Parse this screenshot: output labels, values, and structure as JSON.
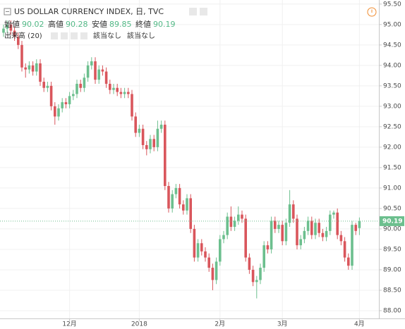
{
  "chart_data": {
    "type": "candlestick",
    "header": {
      "title": "US DOLLAR CURRENCY INDEX, 日, TVC",
      "open_label": "始値",
      "open": "90.02",
      "high_label": "高値",
      "high": "90.28",
      "low_label": "安値",
      "low": "89.85",
      "close_label": "終値",
      "close": "90.19"
    },
    "volume": {
      "label": "出来高 (20)",
      "value1": "該当なし",
      "value2": "該当なし"
    },
    "categories": [
      null,
      null,
      null,
      null,
      null,
      null,
      null,
      null,
      null,
      null,
      null,
      null,
      null,
      null,
      null,
      null,
      null,
      null,
      "12月",
      null,
      null,
      null,
      null,
      null,
      null,
      null,
      null,
      null,
      null,
      null,
      null,
      null,
      null,
      null,
      null,
      null,
      null,
      "2018",
      null,
      null,
      null,
      null,
      null,
      null,
      null,
      null,
      null,
      null,
      null,
      null,
      null,
      null,
      null,
      null,
      null,
      null,
      null,
      null,
      null,
      "2月",
      null,
      null,
      null,
      null,
      null,
      null,
      null,
      null,
      null,
      null,
      null,
      null,
      null,
      null,
      null,
      null,
      "3月",
      null,
      null,
      null,
      null,
      null,
      null,
      null,
      null,
      null,
      null,
      null,
      null,
      null,
      null,
      null,
      null,
      null,
      null,
      null,
      null,
      "4月"
    ],
    "open": [
      94.8,
      94.9,
      95.0,
      94.85,
      94.7,
      94.5,
      93.95,
      93.9,
      94.0,
      93.85,
      94.05,
      93.6,
      93.45,
      93.5,
      93.0,
      92.75,
      92.95,
      93.1,
      93.05,
      93.25,
      93.3,
      93.55,
      93.45,
      93.7,
      94.0,
      94.1,
      93.65,
      93.9,
      93.85,
      93.55,
      93.4,
      93.45,
      93.35,
      93.3,
      93.35,
      93.3,
      92.75,
      92.35,
      92.45,
      92.05,
      91.95,
      92.2,
      92.0,
      92.45,
      92.55,
      91.05,
      90.5,
      90.85,
      91.0,
      90.6,
      90.45,
      90.75,
      90.0,
      89.3,
      89.65,
      89.45,
      89.3,
      89.05,
      88.75,
      89.2,
      89.75,
      89.85,
      90.3,
      90.05,
      90.2,
      90.35,
      90.25,
      89.3,
      89.0,
      88.7,
      88.75,
      89.05,
      89.6,
      89.5,
      90.2,
      90.0,
      90.1,
      89.7,
      90.15,
      90.6,
      90.25,
      89.6,
      89.75,
      89.95,
      90.2,
      89.85,
      90.15,
      89.9,
      89.8,
      89.95,
      90.35,
      90.4,
      89.85,
      89.7,
      89.3,
      89.1,
      90.1,
      90.02
    ],
    "high": [
      95.0,
      95.1,
      95.1,
      94.95,
      94.8,
      94.6,
      94.05,
      94.1,
      94.1,
      94.15,
      94.15,
      93.7,
      93.6,
      93.6,
      93.1,
      93.05,
      93.2,
      93.2,
      93.35,
      93.4,
      93.65,
      93.65,
      93.8,
      94.1,
      94.2,
      94.2,
      94.0,
      94.0,
      93.95,
      93.65,
      93.55,
      93.55,
      93.45,
      93.45,
      93.45,
      93.4,
      92.85,
      92.55,
      92.55,
      92.15,
      92.3,
      92.3,
      92.65,
      92.65,
      92.65,
      91.15,
      90.95,
      91.1,
      91.1,
      90.7,
      90.85,
      90.85,
      90.1,
      89.75,
      89.75,
      89.55,
      89.4,
      89.15,
      89.3,
      89.85,
      89.95,
      90.4,
      90.55,
      90.3,
      90.55,
      90.45,
      90.35,
      89.4,
      89.1,
      88.85,
      89.15,
      89.7,
      89.7,
      90.3,
      90.3,
      90.2,
      90.2,
      90.25,
      90.95,
      90.7,
      90.35,
      89.85,
      90.05,
      90.3,
      90.3,
      90.25,
      90.25,
      90.0,
      90.05,
      90.45,
      90.45,
      90.5,
      89.95,
      89.8,
      89.4,
      90.2,
      90.15,
      90.28
    ],
    "low": [
      94.7,
      94.8,
      94.75,
      94.6,
      94.4,
      93.85,
      93.7,
      93.8,
      93.75,
      93.75,
      93.5,
      93.35,
      93.35,
      92.9,
      92.55,
      92.65,
      92.85,
      92.95,
      92.95,
      93.15,
      93.2,
      93.35,
      93.35,
      93.6,
      93.9,
      93.55,
      93.55,
      93.75,
      93.45,
      93.3,
      93.3,
      93.25,
      93.2,
      93.2,
      93.2,
      92.65,
      92.25,
      92.25,
      91.95,
      91.8,
      91.85,
      91.9,
      91.9,
      92.35,
      90.95,
      90.4,
      90.4,
      90.75,
      90.5,
      90.35,
      90.35,
      89.9,
      89.2,
      89.2,
      89.35,
      89.2,
      88.95,
      88.5,
      88.65,
      89.1,
      89.65,
      89.75,
      89.95,
      89.95,
      90.1,
      90.15,
      89.2,
      88.9,
      88.6,
      88.3,
      88.65,
      88.95,
      89.4,
      89.4,
      89.9,
      89.9,
      89.6,
      89.6,
      90.05,
      90.15,
      89.5,
      89.5,
      89.65,
      89.85,
      89.75,
      89.75,
      89.8,
      89.7,
      89.7,
      89.85,
      90.25,
      89.75,
      89.6,
      89.2,
      89.0,
      89.0,
      89.85,
      89.85
    ],
    "close": [
      94.9,
      95.0,
      94.85,
      94.7,
      94.5,
      93.95,
      93.9,
      94.0,
      93.85,
      94.05,
      93.6,
      93.45,
      93.5,
      93.0,
      92.75,
      92.95,
      93.1,
      93.05,
      93.25,
      93.3,
      93.55,
      93.45,
      93.7,
      94.0,
      94.1,
      93.65,
      93.9,
      93.85,
      93.55,
      93.4,
      93.45,
      93.35,
      93.3,
      93.35,
      93.3,
      92.75,
      92.35,
      92.45,
      92.05,
      91.95,
      92.2,
      92.0,
      92.45,
      92.55,
      91.05,
      90.5,
      90.85,
      91.0,
      90.6,
      90.45,
      90.75,
      90.0,
      89.3,
      89.65,
      89.45,
      89.3,
      89.05,
      88.75,
      89.2,
      89.75,
      89.85,
      90.3,
      90.05,
      90.2,
      90.35,
      90.25,
      89.3,
      89.0,
      88.7,
      88.75,
      89.05,
      89.6,
      89.5,
      90.2,
      90.0,
      90.1,
      89.7,
      90.15,
      90.6,
      90.25,
      89.6,
      89.75,
      89.95,
      90.2,
      89.85,
      90.15,
      89.9,
      89.8,
      89.95,
      90.35,
      90.4,
      89.85,
      89.7,
      89.3,
      89.1,
      90.1,
      89.95,
      90.19
    ],
    "up_color": "#6cbf8e",
    "down_color": "#d9565c",
    "ylim": [
      87.81,
      95.6
    ],
    "yticks": [
      {
        "value": 88,
        "label": "88.00"
      },
      {
        "value": 88.5,
        "label": "88.50"
      },
      {
        "value": 89,
        "label": "89.00"
      },
      {
        "value": 89.5,
        "label": "89.50"
      },
      {
        "value": 90,
        "label": "90.00"
      },
      {
        "value": 90.5,
        "label": "90.50"
      },
      {
        "value": 91,
        "label": "91.00"
      },
      {
        "value": 91.5,
        "label": "91.50"
      },
      {
        "value": 92,
        "label": "92.00"
      },
      {
        "value": 92.5,
        "label": "92.50"
      },
      {
        "value": 93,
        "label": "93.00"
      },
      {
        "value": 93.5,
        "label": "93.50"
      },
      {
        "value": 94,
        "label": "94.00"
      },
      {
        "value": 94.5,
        "label": "94.50"
      },
      {
        "value": 95,
        "label": "95.00"
      },
      {
        "value": 95.5,
        "label": "95.50"
      }
    ],
    "price_line": {
      "value": 90.19,
      "label": "90.19"
    },
    "grid": true
  }
}
